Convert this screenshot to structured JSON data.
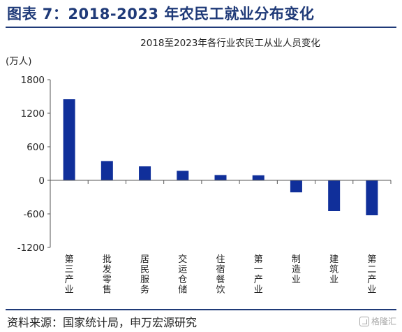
{
  "figure": {
    "title": "图表 7：2018-2023 年农民工就业分布变化",
    "source": "资料来源：国家统计局，申万宏源研究",
    "watermark": "格隆汇"
  },
  "chart_data": {
    "type": "bar",
    "title": "2018至2023年各行业农民工从业人员变化",
    "unit_label": "(万人)",
    "categories": [
      "第三产业",
      "批发零售",
      "居民服务",
      "交运仓储",
      "住宿餐饮",
      "第一产业",
      "制造业",
      "建筑业",
      "第二产业"
    ],
    "values": [
      1450,
      345,
      250,
      170,
      95,
      90,
      -215,
      -550,
      -625
    ],
    "yticks": [
      "1800",
      "1200",
      "600",
      "0",
      "-600",
      "-1200"
    ],
    "ylim": [
      -1200,
      1800
    ],
    "bar_color": "#102f9a",
    "grid": false
  }
}
